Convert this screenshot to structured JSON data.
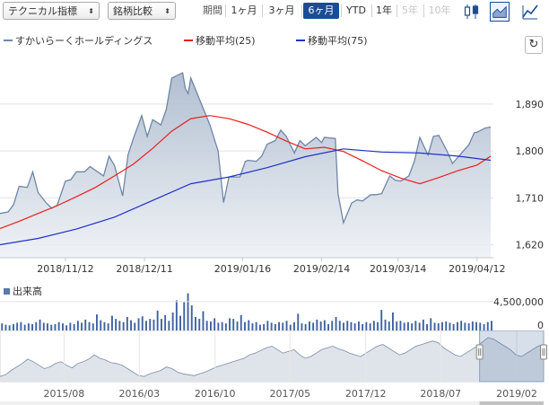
{
  "toolbar": {
    "technical_select": "テクニカル指標",
    "compare_select": "銘柄比較",
    "period_label": "期間",
    "ranges": [
      "1ヶ月",
      "3ヶ月",
      "6ヶ月",
      "YTD",
      "1年",
      "5年",
      "10年"
    ],
    "active_range": "6ヶ月",
    "disabled_ranges": [
      "5年",
      "10年"
    ],
    "icons": [
      "candlestick-icon",
      "area-chart-icon",
      "settings-icon"
    ],
    "active_icon": "area-chart-icon"
  },
  "legend": {
    "price": "すかいらーくホールディングス",
    "ma25": "移動平均(25)",
    "ma75": "移動平均(75)"
  },
  "colors": {
    "price_line": "#6e86a8",
    "price_fill": "#c9d2de",
    "ma25": "#e8201e",
    "ma75": "#2031c9",
    "volume": "#3f62a0",
    "active": "#1a4d97"
  },
  "chart_data": [
    {
      "type": "area",
      "title": "",
      "xlabel": "",
      "ylabel": "",
      "x_ticks": [
        "2018/11/12",
        "2018/12/11",
        "2019/01/16",
        "2019/02/14",
        "2019/03/14",
        "2019/04/12"
      ],
      "y_ticks": [
        1620,
        1710,
        1800,
        1890
      ],
      "ylim": [
        1595,
        1995
      ],
      "grid": true,
      "legend_position": "top-left",
      "x_start": "2018-10-19",
      "x_end": "2019-04-18",
      "series": [
        {
          "name": "すかいらーくホールディングス",
          "style": "area",
          "points": [
            [
              "2018-10-19",
              1680
            ],
            [
              "2018-10-22",
              1683
            ],
            [
              "2018-10-24",
              1697
            ],
            [
              "2018-10-26",
              1732
            ],
            [
              "2018-10-29",
              1730
            ],
            [
              "2018-10-31",
              1760
            ],
            [
              "2018-11-02",
              1720
            ],
            [
              "2018-11-05",
              1700
            ],
            [
              "2018-11-07",
              1690
            ],
            [
              "2018-11-09",
              1696
            ],
            [
              "2018-11-12",
              1742
            ],
            [
              "2018-11-14",
              1745
            ],
            [
              "2018-11-16",
              1760
            ],
            [
              "2018-11-19",
              1760
            ],
            [
              "2018-11-21",
              1770
            ],
            [
              "2018-11-26",
              1752
            ],
            [
              "2018-11-28",
              1790
            ],
            [
              "2018-11-30",
              1772
            ],
            [
              "2018-12-03",
              1714
            ],
            [
              "2018-12-05",
              1793
            ],
            [
              "2018-12-07",
              1825
            ],
            [
              "2018-12-10",
              1868
            ],
            [
              "2018-12-12",
              1828
            ],
            [
              "2018-12-14",
              1860
            ],
            [
              "2018-12-17",
              1850
            ],
            [
              "2018-12-19",
              1880
            ],
            [
              "2018-12-21",
              1940
            ],
            [
              "2018-12-25",
              1950
            ],
            [
              "2018-12-26",
              1920
            ],
            [
              "2018-12-27",
              1910
            ],
            [
              "2018-12-28",
              1940
            ],
            [
              "2019-01-04",
              1850
            ],
            [
              "2019-01-07",
              1800
            ],
            [
              "2019-01-09",
              1701
            ],
            [
              "2019-01-11",
              1750
            ],
            [
              "2019-01-15",
              1750
            ],
            [
              "2019-01-17",
              1780
            ],
            [
              "2019-01-18",
              1782
            ],
            [
              "2019-01-21",
              1780
            ],
            [
              "2019-01-23",
              1790
            ],
            [
              "2019-01-25",
              1813
            ],
            [
              "2019-01-28",
              1820
            ],
            [
              "2019-01-30",
              1840
            ],
            [
              "2019-02-01",
              1828
            ],
            [
              "2019-02-04",
              1796
            ],
            [
              "2019-02-06",
              1820
            ],
            [
              "2019-02-08",
              1810
            ],
            [
              "2019-02-12",
              1826
            ],
            [
              "2019-02-14",
              1816
            ],
            [
              "2019-02-15",
              1826
            ],
            [
              "2019-02-19",
              1824
            ],
            [
              "2019-02-20",
              1718
            ],
            [
              "2019-02-22",
              1662
            ],
            [
              "2019-02-25",
              1700
            ],
            [
              "2019-02-27",
              1706
            ],
            [
              "2019-03-01",
              1704
            ],
            [
              "2019-03-04",
              1716
            ],
            [
              "2019-03-06",
              1716
            ],
            [
              "2019-03-08",
              1718
            ],
            [
              "2019-03-11",
              1752
            ],
            [
              "2019-03-13",
              1744
            ],
            [
              "2019-03-15",
              1742
            ],
            [
              "2019-03-18",
              1752
            ],
            [
              "2019-03-20",
              1780
            ],
            [
              "2019-03-22",
              1826
            ],
            [
              "2019-03-25",
              1792
            ],
            [
              "2019-03-27",
              1828
            ],
            [
              "2019-03-29",
              1830
            ],
            [
              "2019-04-01",
              1800
            ],
            [
              "2019-04-03",
              1776
            ],
            [
              "2019-04-05",
              1788
            ],
            [
              "2019-04-09",
              1812
            ],
            [
              "2019-04-11",
              1835
            ],
            [
              "2019-04-12",
              1836
            ],
            [
              "2019-04-15",
              1844
            ],
            [
              "2019-04-17",
              1846
            ]
          ]
        },
        {
          "name": "移動平均(25)",
          "style": "line",
          "points": [
            [
              "2018-10-19",
              1651
            ],
            [
              "2018-10-26",
              1665
            ],
            [
              "2018-11-02",
              1680
            ],
            [
              "2018-11-09",
              1695
            ],
            [
              "2018-11-16",
              1712
            ],
            [
              "2018-11-23",
              1730
            ],
            [
              "2018-11-30",
              1752
            ],
            [
              "2018-12-07",
              1775
            ],
            [
              "2018-12-14",
              1805
            ],
            [
              "2018-12-21",
              1838
            ],
            [
              "2018-12-28",
              1862
            ],
            [
              "2019-01-04",
              1868
            ],
            [
              "2019-01-11",
              1862
            ],
            [
              "2019-01-18",
              1851
            ],
            [
              "2019-01-25",
              1836
            ],
            [
              "2019-02-01",
              1819
            ],
            [
              "2019-02-08",
              1804
            ],
            [
              "2019-02-15",
              1807
            ],
            [
              "2019-02-22",
              1799
            ],
            [
              "2019-03-01",
              1781
            ],
            [
              "2019-03-08",
              1762
            ],
            [
              "2019-03-15",
              1748
            ],
            [
              "2019-03-22",
              1737
            ],
            [
              "2019-03-29",
              1749
            ],
            [
              "2019-04-05",
              1762
            ],
            [
              "2019-04-12",
              1773
            ],
            [
              "2019-04-17",
              1790
            ]
          ]
        },
        {
          "name": "移動平均(75)",
          "style": "line",
          "points": [
            [
              "2018-10-19",
              1620
            ],
            [
              "2018-11-02",
              1632
            ],
            [
              "2018-11-16",
              1650
            ],
            [
              "2018-11-30",
              1673
            ],
            [
              "2018-12-14",
              1705
            ],
            [
              "2018-12-28",
              1737
            ],
            [
              "2019-01-11",
              1750
            ],
            [
              "2019-01-25",
              1768
            ],
            [
              "2019-02-08",
              1789
            ],
            [
              "2019-02-22",
              1804
            ],
            [
              "2019-03-08",
              1798
            ],
            [
              "2019-03-22",
              1796
            ],
            [
              "2019-04-05",
              1790
            ],
            [
              "2019-04-17",
              1782
            ]
          ]
        }
      ]
    },
    {
      "type": "bar",
      "title": "出来高",
      "y_ticks": [
        0,
        4500000
      ],
      "y_tick_labels": [
        "0",
        "4,500,000"
      ],
      "ylim": [
        0,
        7000000
      ],
      "x_start": "2018-10-19",
      "x_end": "2019-04-18",
      "values": [
        1100000,
        900000,
        800000,
        1000000,
        1200000,
        1300000,
        900000,
        1100000,
        1000000,
        1300000,
        1700000,
        1200000,
        1100000,
        900000,
        1000000,
        1300000,
        1100000,
        800000,
        1200000,
        1000000,
        1500000,
        1200000,
        1700000,
        1300000,
        1100000,
        2500000,
        1600000,
        1300000,
        1100000,
        2300000,
        1800000,
        1500000,
        1300000,
        2100000,
        1600000,
        1200000,
        1900000,
        2200000,
        1500000,
        1800000,
        1700000,
        3100000,
        1800000,
        2400000,
        1500000,
        2800000,
        4700000,
        2300000,
        4400000,
        5800000,
        3900000,
        2100000,
        1800000,
        3000000,
        1500000,
        1400000,
        1900000,
        1200000,
        1300000,
        1100000,
        1900000,
        1800000,
        1400000,
        2400000,
        1300000,
        1600000,
        1100000,
        1300000,
        900000,
        1000000,
        1500000,
        1200000,
        1000000,
        1300000,
        1200000,
        1500000,
        900000,
        1300000,
        2600000,
        1100000,
        1000000,
        1400000,
        1200000,
        1700000,
        1400000,
        1600000,
        1000000,
        1500000,
        2100000,
        1500000,
        1200000,
        1500000,
        1300000,
        1100000,
        1400000,
        1000000,
        1300000,
        1100000,
        1500000,
        1300000,
        3200000,
        1700000,
        1400000,
        2800000,
        1400000,
        1500000,
        1200000,
        1300000,
        1100000,
        1500000,
        1200000,
        1700000,
        1000000,
        1900000,
        1200000,
        1100000,
        1300000,
        1400000,
        1200000,
        1000000,
        1300000,
        1500000,
        1200000,
        1100000,
        1400000,
        1300000,
        1200000,
        1000000,
        1300000,
        1500000
      ]
    },
    {
      "type": "area",
      "title": "navigator",
      "x_ticks": [
        "2015/08",
        "2016/03",
        "2016/10",
        "2017/05",
        "2017/12",
        "2018/07",
        "2019/02"
      ],
      "x_start": "2015-02-01",
      "x_end": "2019-04-18",
      "selected_range": [
        "2018-10-19",
        "2019-04-18"
      ],
      "values": [
        1450,
        1470,
        1520,
        1560,
        1600,
        1650,
        1620,
        1580,
        1540,
        1560,
        1600,
        1620,
        1580,
        1550,
        1600,
        1620,
        1650,
        1700,
        1660,
        1640,
        1610,
        1600,
        1580,
        1540,
        1500,
        1460,
        1450,
        1480,
        1500,
        1520,
        1560,
        1540,
        1500,
        1480,
        1470,
        1460,
        1480,
        1500,
        1530,
        1560,
        1580,
        1600,
        1620,
        1640,
        1660,
        1700,
        1720,
        1750,
        1780,
        1800,
        1760,
        1720,
        1740,
        1760,
        1700,
        1660,
        1680,
        1720,
        1760,
        1780,
        1800,
        1770,
        1750,
        1720,
        1700,
        1680,
        1720,
        1760,
        1800,
        1820,
        1780,
        1740,
        1700,
        1720,
        1760,
        1800,
        1820,
        1840,
        1860,
        1840,
        1780,
        1740,
        1700,
        1680,
        1720,
        1760,
        1800,
        1850,
        1900,
        1880,
        1840,
        1800,
        1760,
        1700,
        1680,
        1720,
        1760,
        1800,
        1820
      ]
    }
  ]
}
